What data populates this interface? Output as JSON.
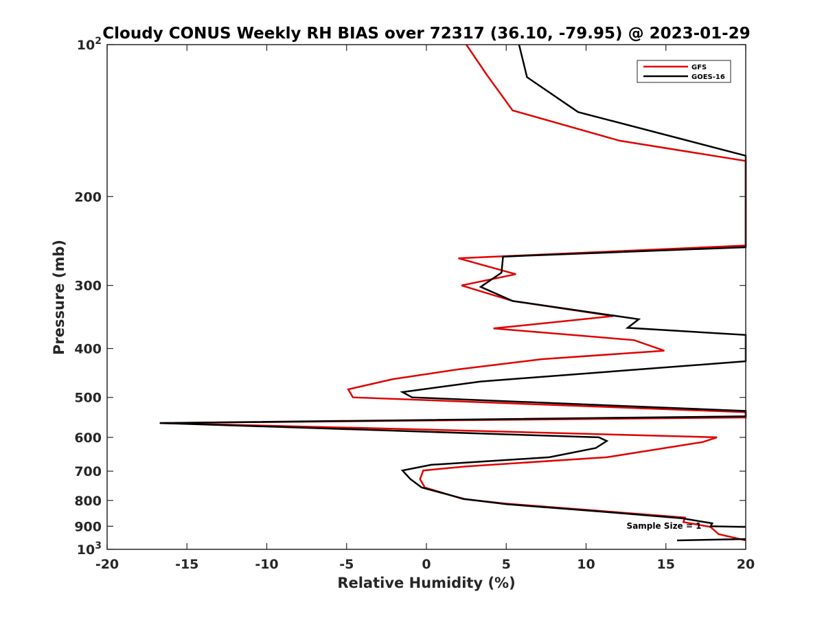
{
  "chart_data": {
    "type": "line",
    "title": "Cloudy CONUS Weekly RH BIAS over 72317 (36.10, -79.95) @ 2023-01-29",
    "xlabel": "Relative Humidity (%)",
    "ylabel": "Pressure (mb)",
    "xlim": [
      -20,
      20
    ],
    "ylim": [
      100,
      1000
    ],
    "y_scale": "log",
    "y_reversed": true,
    "grid": false,
    "legend_position": "top-right",
    "x_ticks": [
      "-20",
      "-15",
      "-10",
      "-5",
      "0",
      "5",
      "10",
      "15",
      "20"
    ],
    "y_ticks": [
      {
        "value": 100,
        "base": "10",
        "exp": "2"
      },
      {
        "value": 200,
        "label": "200"
      },
      {
        "value": 300,
        "label": "300"
      },
      {
        "value": 400,
        "label": "400"
      },
      {
        "value": 500,
        "label": "500"
      },
      {
        "value": 600,
        "label": "600"
      },
      {
        "value": 700,
        "label": "700"
      },
      {
        "value": 800,
        "label": "800"
      },
      {
        "value": 900,
        "label": "900"
      },
      {
        "value": 1000,
        "base": "10",
        "exp": "3"
      }
    ],
    "series": [
      {
        "name": "GFS",
        "color": "#e00000",
        "points": [
          [
            2.5,
            100
          ],
          [
            3.8,
            115
          ],
          [
            5.4,
            135
          ],
          [
            12.1,
            155
          ],
          [
            20,
            170
          ],
          [
            20,
            250
          ],
          [
            2.0,
            265
          ],
          [
            5.6,
            285
          ],
          [
            2.2,
            300
          ],
          [
            5.4,
            322
          ],
          [
            11.7,
            345
          ],
          [
            4.2,
            365
          ],
          [
            13.0,
            385
          ],
          [
            14.9,
            404
          ],
          [
            7.2,
            420
          ],
          [
            2.0,
            440
          ],
          [
            -2.1,
            460
          ],
          [
            -4.9,
            482
          ],
          [
            -4.6,
            500
          ],
          [
            20,
            535
          ],
          [
            20,
            548
          ],
          [
            -16.7,
            562
          ],
          [
            -1.0,
            578
          ],
          [
            18.2,
            600
          ],
          [
            17.3,
            613
          ],
          [
            11.3,
            657
          ],
          [
            2.5,
            685
          ],
          [
            -0.2,
            698
          ],
          [
            -0.4,
            726
          ],
          [
            -0.1,
            754
          ],
          [
            2.3,
            795
          ],
          [
            5.0,
            812
          ],
          [
            11.0,
            840
          ],
          [
            16.2,
            865
          ],
          [
            16.1,
            883
          ],
          [
            17.8,
            903
          ],
          [
            18.3,
            933
          ],
          [
            20,
            960
          ]
        ]
      },
      {
        "name": "GOES-16",
        "color": "#000000",
        "points": [
          [
            5.8,
            100
          ],
          [
            6.3,
            116
          ],
          [
            9.5,
            136
          ],
          [
            20,
            166
          ],
          [
            20,
            252
          ],
          [
            4.8,
            263
          ],
          [
            4.7,
            283
          ],
          [
            3.4,
            302
          ],
          [
            5.4,
            322
          ],
          [
            13.3,
            350
          ],
          [
            12.6,
            364
          ],
          [
            20,
            376
          ],
          [
            20,
            424
          ],
          [
            3.4,
            465
          ],
          [
            -1.5,
            488
          ],
          [
            -0.9,
            500
          ],
          [
            20,
            532
          ],
          [
            20,
            545
          ],
          [
            -16.7,
            562
          ],
          [
            10.8,
            600
          ],
          [
            11.3,
            610
          ],
          [
            10.6,
            630
          ],
          [
            7.7,
            657
          ],
          [
            0.3,
            680
          ],
          [
            -1.5,
            698
          ],
          [
            -1.0,
            726
          ],
          [
            -0.3,
            754
          ],
          [
            2.4,
            795
          ],
          [
            5.0,
            814
          ],
          [
            11.0,
            842
          ],
          [
            16.0,
            868
          ],
          [
            17.9,
            888
          ],
          [
            17.8,
            900
          ],
          [
            20,
            903
          ]
        ]
      },
      {
        "name": "",
        "color": "#000000",
        "points": [
          [
            15.7,
            960
          ],
          [
            20,
            954
          ]
        ]
      }
    ],
    "annotations": [
      "Sample Size = 1"
    ]
  }
}
